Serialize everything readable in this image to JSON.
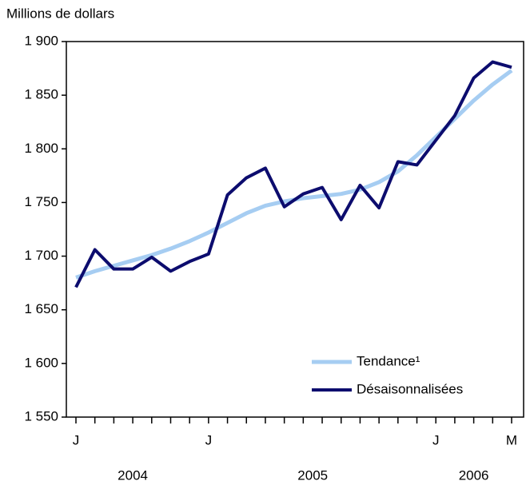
{
  "chart_data": {
    "type": "line",
    "y_label": "Millions de dollars",
    "categories": [
      "J",
      null,
      null,
      null,
      null,
      null,
      null,
      "J",
      null,
      null,
      null,
      null,
      null,
      null,
      null,
      null,
      null,
      null,
      null,
      "J",
      null,
      null,
      null,
      "M"
    ],
    "years": [
      {
        "label": "2004",
        "from": 0,
        "to": 6
      },
      {
        "label": "2005",
        "from": 7,
        "to": 18
      },
      {
        "label": "2006",
        "from": 19,
        "to": 23
      }
    ],
    "series": [
      {
        "name": "Tendance¹",
        "color": "#a6cdf2",
        "values": [
          1680,
          1686,
          1691,
          1696,
          1701,
          1707,
          1714,
          1722,
          1731,
          1740,
          1747,
          1751,
          1754,
          1756,
          1758,
          1762,
          1769,
          1779,
          1794,
          1811,
          1828,
          1845,
          1860,
          1873
        ]
      },
      {
        "name": "Désaisonnalisées",
        "color": "#0c0c6e",
        "values": [
          1671,
          1706,
          1688,
          1688,
          1699,
          1686,
          1695,
          1702,
          1757,
          1773,
          1782,
          1746,
          1758,
          1764,
          1734,
          1766,
          1745,
          1788,
          1785,
          1808,
          1831,
          1866,
          1881,
          1876
        ]
      }
    ],
    "ylim": [
      1550,
      1900
    ],
    "yticks": [
      {
        "value": 1550,
        "label": "1 550"
      },
      {
        "value": 1600,
        "label": "1 600"
      },
      {
        "value": 1650,
        "label": "1 650"
      },
      {
        "value": 1700,
        "label": "1 700"
      },
      {
        "value": 1750,
        "label": "1 750"
      },
      {
        "value": 1800,
        "label": "1 800"
      },
      {
        "value": 1850,
        "label": "1 850"
      },
      {
        "value": 1900,
        "label": "1 900"
      }
    ],
    "legend": "lower-right"
  }
}
